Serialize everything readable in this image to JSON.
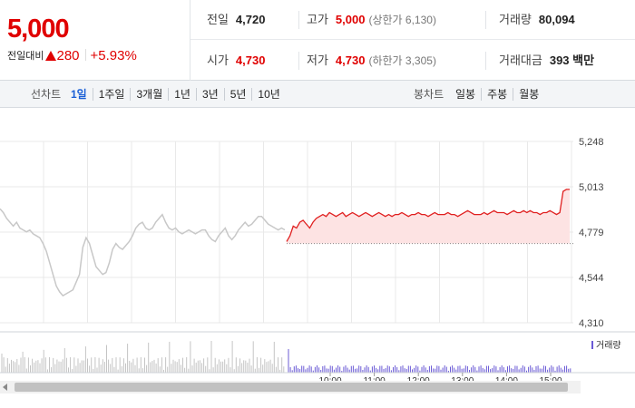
{
  "summary": {
    "current_price": "5,000",
    "change_label": "전일대비",
    "change_value": "280",
    "change_percent": "+5.93%",
    "stats": {
      "prev_close": {
        "label": "전일",
        "value": "4,720"
      },
      "high": {
        "label": "고가",
        "value": "5,000",
        "sub": "(상한가 6,130)"
      },
      "volume": {
        "label": "거래량",
        "value": "80,094"
      },
      "open": {
        "label": "시가",
        "value": "4,730"
      },
      "low": {
        "label": "저가",
        "value": "4,730",
        "sub": "(하한가 3,305)"
      },
      "trade_amount": {
        "label": "거래대금",
        "value": "393 백만"
      }
    }
  },
  "toolbar": {
    "line_chart_label": "선차트",
    "line_periods": [
      "1일",
      "1주일",
      "3개월",
      "1년",
      "3년",
      "5년",
      "10년"
    ],
    "active_period": "1일",
    "candle_chart_label": "봉차트",
    "candle_periods": [
      "일봉",
      "주봉",
      "월봉"
    ]
  },
  "chart_data": {
    "type": "line",
    "y_ticks": [
      "5,248",
      "5,013",
      "4,779",
      "4,544",
      "4,310"
    ],
    "ylim": [
      4310,
      5248
    ],
    "reference_price": 4720,
    "volume_legend": "거래량",
    "colors": {
      "today_line": "#e02020",
      "today_fill": "#fde3e3",
      "prev_line": "#c8c8c8",
      "prev_volume": "#c4c4c4",
      "today_volume": "#6b5bd6",
      "grid": "#e9e9e9"
    },
    "x_labels": [
      "10:00",
      "11:00",
      "12:00",
      "13:00",
      "14:00",
      "15:00"
    ],
    "previous_day": [
      4900,
      4880,
      4850,
      4830,
      4810,
      4830,
      4800,
      4790,
      4780,
      4790,
      4770,
      4760,
      4750,
      4720,
      4680,
      4620,
      4560,
      4500,
      4470,
      4450,
      4460,
      4470,
      4480,
      4520,
      4560,
      4700,
      4750,
      4720,
      4660,
      4600,
      4580,
      4560,
      4570,
      4620,
      4690,
      4720,
      4700,
      4690,
      4710,
      4730,
      4760,
      4800,
      4820,
      4830,
      4800,
      4790,
      4800,
      4830,
      4850,
      4870,
      4830,
      4800,
      4790,
      4800,
      4780,
      4770,
      4780,
      4790,
      4780,
      4770,
      4780,
      4790,
      4790,
      4760,
      4740,
      4730,
      4760,
      4780,
      4800,
      4760,
      4740,
      4760,
      4790,
      4810,
      4830,
      4810,
      4820,
      4840,
      4860,
      4860,
      4840,
      4820,
      4810,
      4800,
      4790,
      4800,
      4790
    ],
    "today": [
      4730,
      4760,
      4810,
      4800,
      4830,
      4840,
      4820,
      4800,
      4830,
      4850,
      4860,
      4870,
      4860,
      4880,
      4870,
      4860,
      4870,
      4880,
      4860,
      4870,
      4880,
      4870,
      4860,
      4870,
      4880,
      4870,
      4860,
      4870,
      4880,
      4870,
      4860,
      4870,
      4860,
      4870,
      4870,
      4880,
      4870,
      4860,
      4870,
      4870,
      4880,
      4870,
      4870,
      4860,
      4870,
      4880,
      4870,
      4870,
      4870,
      4880,
      4870,
      4870,
      4860,
      4870,
      4880,
      4890,
      4880,
      4870,
      4870,
      4870,
      4880,
      4870,
      4880,
      4890,
      4880,
      4880,
      4880,
      4870,
      4880,
      4890,
      4880,
      4880,
      4890,
      4880,
      4890,
      4880,
      4880,
      4870,
      4880,
      4880,
      4890,
      4880,
      4870,
      4880,
      4990,
      5000,
      5000
    ]
  }
}
